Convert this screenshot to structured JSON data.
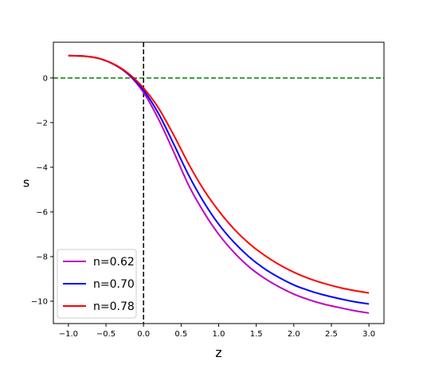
{
  "chart_data": {
    "type": "line",
    "title": "",
    "xlabel": "z",
    "ylabel": "s",
    "xlim": [
      -1.2,
      3.2
    ],
    "ylim": [
      -11.0,
      1.6
    ],
    "xticks": [
      -1.0,
      -0.5,
      0.0,
      0.5,
      1.0,
      1.5,
      2.0,
      2.5,
      3.0
    ],
    "xtick_labels": [
      "−1.0",
      "−0.5",
      "0.0",
      "0.5",
      "1.0",
      "1.5",
      "2.0",
      "2.5",
      "3.0"
    ],
    "yticks": [
      0,
      -2,
      -4,
      -6,
      -8,
      -10
    ],
    "ytick_labels": [
      "0",
      "−2",
      "−4",
      "−6",
      "−8",
      "−10"
    ],
    "grid": false,
    "legend_position": "lower-left",
    "reference_lines": [
      {
        "orientation": "horizontal",
        "value": 0,
        "color": "#008000",
        "style": "dashed"
      },
      {
        "orientation": "vertical",
        "value": 0,
        "color": "#000000",
        "style": "dashed"
      }
    ],
    "series": [
      {
        "name": "n=0.62",
        "color": "#c000c0",
        "x": [
          -1.0,
          -0.8,
          -0.6,
          -0.4,
          -0.2,
          0.0,
          0.2,
          0.4,
          0.6,
          0.8,
          1.0,
          1.2,
          1.4,
          1.6,
          1.8,
          2.0,
          2.2,
          2.4,
          2.6,
          2.8,
          3.0
        ],
        "y": [
          1.0,
          0.98,
          0.88,
          0.62,
          0.15,
          -0.65,
          -1.85,
          -3.3,
          -4.8,
          -6.0,
          -7.0,
          -7.8,
          -8.45,
          -8.95,
          -9.35,
          -9.68,
          -9.93,
          -10.13,
          -10.28,
          -10.42,
          -10.53
        ]
      },
      {
        "name": "n=0.70",
        "color": "#0000ff",
        "x": [
          -1.0,
          -0.8,
          -0.6,
          -0.4,
          -0.2,
          0.0,
          0.2,
          0.4,
          0.6,
          0.8,
          1.0,
          1.2,
          1.4,
          1.6,
          1.8,
          2.0,
          2.2,
          2.4,
          2.6,
          2.8,
          3.0
        ],
        "y": [
          1.0,
          0.98,
          0.88,
          0.62,
          0.17,
          -0.55,
          -1.6,
          -2.95,
          -4.35,
          -5.55,
          -6.55,
          -7.35,
          -8.0,
          -8.52,
          -8.93,
          -9.27,
          -9.52,
          -9.72,
          -9.88,
          -10.02,
          -10.12
        ]
      },
      {
        "name": "n=0.78",
        "color": "#ff0000",
        "x": [
          -1.0,
          -0.8,
          -0.6,
          -0.4,
          -0.2,
          0.0,
          0.2,
          0.4,
          0.6,
          0.8,
          1.0,
          1.2,
          1.4,
          1.6,
          1.8,
          2.0,
          2.2,
          2.4,
          2.6,
          2.8,
          3.0
        ],
        "y": [
          1.0,
          0.98,
          0.88,
          0.63,
          0.2,
          -0.45,
          -1.35,
          -2.55,
          -3.85,
          -5.0,
          -5.95,
          -6.75,
          -7.4,
          -7.92,
          -8.35,
          -8.7,
          -8.98,
          -9.2,
          -9.38,
          -9.52,
          -9.63
        ]
      }
    ]
  }
}
